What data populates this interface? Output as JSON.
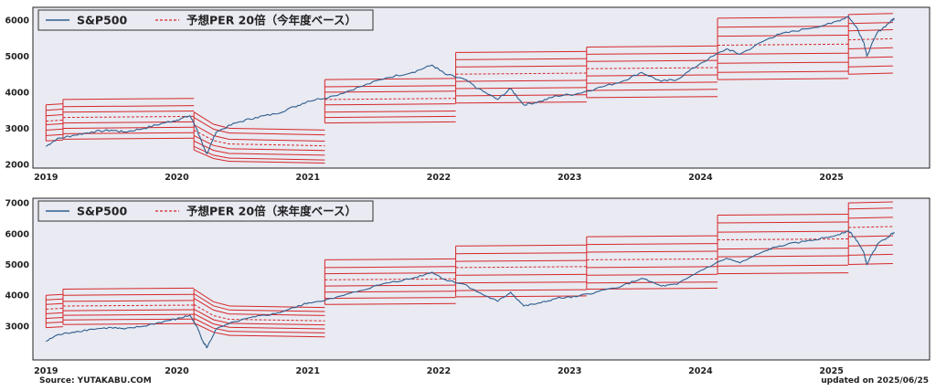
{
  "colors": {
    "background": "#e9eaf2",
    "price_line": "#2f5e8e",
    "band_lines": "#d62728"
  },
  "footer": {
    "source": "Source: YUTAKABU.COM",
    "updated": "updated on 2025/06/25"
  },
  "chart_data": [
    {
      "type": "line",
      "ylim": [
        1900,
        6350
      ],
      "yticks": [
        2000,
        3000,
        4000,
        5000,
        6000
      ],
      "xlim": [
        2018.9,
        2025.75
      ],
      "xticks": [
        "2019",
        "2020",
        "2021",
        "2022",
        "2023",
        "2024",
        "2025"
      ],
      "legend": {
        "placement": "top-left",
        "series_label": "S&P500",
        "band_label": "予想PER 20倍（今年度ベース）"
      },
      "sp500": {
        "x": [
          2019.0,
          2019.08,
          2019.2,
          2019.35,
          2019.5,
          2019.6,
          2019.75,
          2019.9,
          2020.0,
          2020.1,
          2020.15,
          2020.2,
          2020.23,
          2020.3,
          2020.45,
          2020.6,
          2020.75,
          2020.9,
          2021.0,
          2021.2,
          2021.4,
          2021.6,
          2021.8,
          2021.95,
          2022.05,
          2022.2,
          2022.3,
          2022.45,
          2022.55,
          2022.65,
          2022.78,
          2022.9,
          2023.05,
          2023.2,
          2023.4,
          2023.55,
          2023.7,
          2023.82,
          2024.0,
          2024.2,
          2024.3,
          2024.5,
          2024.6,
          2024.8,
          2025.0,
          2025.13,
          2025.2,
          2025.25,
          2025.27,
          2025.35,
          2025.45,
          2025.48
        ],
        "y": [
          2500,
          2700,
          2800,
          2900,
          2950,
          2900,
          3000,
          3150,
          3230,
          3350,
          3000,
          2500,
          2300,
          2900,
          3150,
          3300,
          3400,
          3600,
          3750,
          3900,
          4150,
          4400,
          4550,
          4750,
          4500,
          4350,
          4100,
          3800,
          4100,
          3650,
          3750,
          3900,
          3950,
          4100,
          4300,
          4550,
          4300,
          4350,
          4800,
          5200,
          5050,
          5450,
          5600,
          5750,
          5900,
          6100,
          5750,
          5350,
          5000,
          5650,
          5950,
          6050
        ]
      },
      "per_bands": [
        {
          "x": [
            2019.0,
            2019.13
          ],
          "levels": [
            2650,
            2800,
            2950,
            3100,
            3200,
            3350,
            3500,
            3650
          ]
        },
        {
          "x": [
            2019.13,
            2020.13
          ],
          "levels": [
            2700,
            2850,
            3000,
            3150,
            3300,
            3450,
            3600,
            3800
          ]
        },
        {
          "x": [
            2020.13,
            2020.28,
            2020.4,
            2021.13
          ],
          "levels": [
            2400,
            2500,
            2650,
            2800,
            2950,
            3100,
            3300,
            3450
          ]
        },
        {
          "x": [
            2021.13,
            2022.13
          ],
          "levels": [
            3150,
            3300,
            3450,
            3650,
            3800,
            4000,
            4150,
            4350
          ]
        },
        {
          "x": [
            2022.13,
            2023.13
          ],
          "levels": [
            3700,
            3900,
            4100,
            4300,
            4500,
            4700,
            4900,
            5100
          ]
        },
        {
          "x": [
            2023.13,
            2024.13
          ],
          "levels": [
            3850,
            4050,
            4250,
            4450,
            4650,
            4850,
            5050,
            5250
          ]
        },
        {
          "x": [
            2024.13,
            2025.13
          ],
          "levels": [
            4350,
            4550,
            4800,
            5050,
            5300,
            5550,
            5800,
            6050
          ]
        },
        {
          "x": [
            2025.13,
            2025.47
          ],
          "levels": [
            4500,
            4700,
            4950,
            5200,
            5450,
            5700,
            5900,
            6150
          ]
        }
      ],
      "dashed_band_index": 4
    },
    {
      "type": "line",
      "ylim": [
        1900,
        7150
      ],
      "yticks": [
        3000,
        4000,
        5000,
        6000,
        7000
      ],
      "xlim": [
        2018.9,
        2025.75
      ],
      "xticks": [
        "2019",
        "2020",
        "2021",
        "2022",
        "2023",
        "2024",
        "2025"
      ],
      "legend": {
        "placement": "top-left",
        "series_label": "S&P500",
        "band_label": "予想PER 20倍（来年度ベース）"
      },
      "sp500": {
        "x": [
          2019.0,
          2019.08,
          2019.2,
          2019.35,
          2019.5,
          2019.6,
          2019.75,
          2019.9,
          2020.0,
          2020.1,
          2020.15,
          2020.2,
          2020.23,
          2020.3,
          2020.45,
          2020.6,
          2020.75,
          2020.9,
          2021.0,
          2021.2,
          2021.4,
          2021.6,
          2021.8,
          2021.95,
          2022.05,
          2022.2,
          2022.3,
          2022.45,
          2022.55,
          2022.65,
          2022.78,
          2022.9,
          2023.05,
          2023.2,
          2023.4,
          2023.55,
          2023.7,
          2023.82,
          2024.0,
          2024.2,
          2024.3,
          2024.5,
          2024.6,
          2024.8,
          2025.0,
          2025.13,
          2025.2,
          2025.25,
          2025.27,
          2025.35,
          2025.45,
          2025.48
        ],
        "y": [
          2500,
          2700,
          2800,
          2900,
          2950,
          2900,
          3000,
          3150,
          3230,
          3350,
          3000,
          2500,
          2300,
          2900,
          3150,
          3300,
          3400,
          3600,
          3750,
          3900,
          4150,
          4400,
          4550,
          4750,
          4500,
          4350,
          4100,
          3800,
          4100,
          3650,
          3750,
          3900,
          3950,
          4100,
          4300,
          4550,
          4300,
          4350,
          4800,
          5200,
          5050,
          5450,
          5600,
          5750,
          5900,
          6100,
          5750,
          5350,
          5000,
          5650,
          5950,
          6050
        ]
      },
      "per_bands": [
        {
          "x": [
            2019.0,
            2019.13
          ],
          "levels": [
            2950,
            3100,
            3250,
            3400,
            3550,
            3700,
            3850,
            4000
          ]
        },
        {
          "x": [
            2019.13,
            2020.13
          ],
          "levels": [
            3050,
            3200,
            3350,
            3500,
            3650,
            3800,
            4000,
            4200
          ]
        },
        {
          "x": [
            2020.13,
            2020.28,
            2020.4,
            2021.13
          ],
          "levels": [
            3100,
            3250,
            3400,
            3550,
            3700,
            3900,
            4050,
            4200
          ]
        },
        {
          "x": [
            2021.13,
            2022.13
          ],
          "levels": [
            3700,
            3900,
            4100,
            4300,
            4500,
            4700,
            4900,
            5150
          ]
        },
        {
          "x": [
            2022.13,
            2023.13
          ],
          "levels": [
            3950,
            4150,
            4400,
            4650,
            4900,
            5100,
            5350,
            5600
          ]
        },
        {
          "x": [
            2023.13,
            2024.13
          ],
          "levels": [
            4200,
            4400,
            4650,
            4900,
            5150,
            5400,
            5650,
            5900
          ]
        },
        {
          "x": [
            2024.13,
            2025.13
          ],
          "levels": [
            4700,
            4950,
            5250,
            5500,
            5800,
            6050,
            6350,
            6600
          ]
        },
        {
          "x": [
            2025.13,
            2025.47
          ],
          "levels": [
            5000,
            5300,
            5600,
            5900,
            6200,
            6500,
            6800,
            7000
          ]
        }
      ],
      "dashed_band_index": 4
    }
  ]
}
